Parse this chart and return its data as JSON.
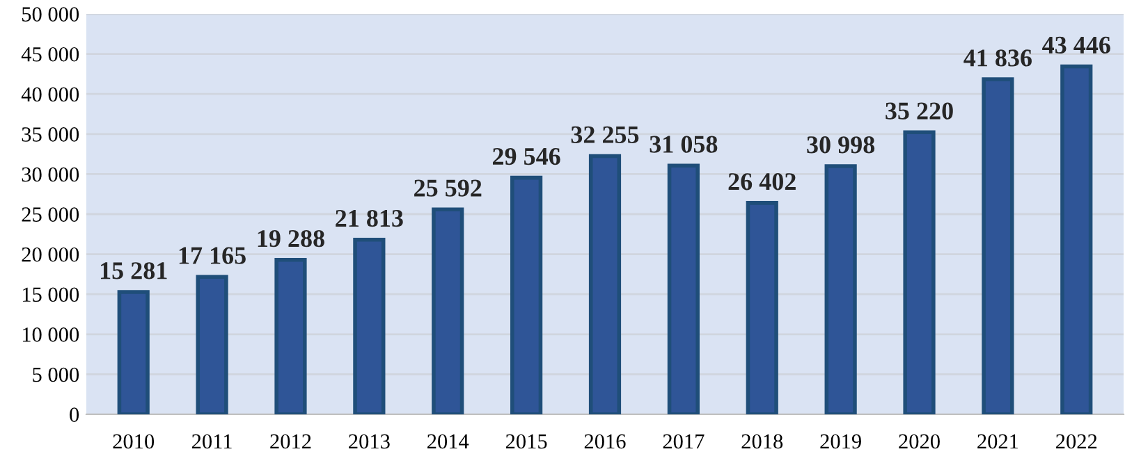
{
  "chart_data": {
    "type": "bar",
    "categories": [
      "2010",
      "2011",
      "2012",
      "2013",
      "2014",
      "2015",
      "2016",
      "2017",
      "2018",
      "2019",
      "2020",
      "2021",
      "2022"
    ],
    "values": [
      15281,
      17165,
      19288,
      21813,
      25592,
      29546,
      32255,
      31058,
      26402,
      30998,
      35220,
      41836,
      43446
    ],
    "value_labels": [
      "15 281",
      "17 165",
      "19 288",
      "21 813",
      "25 592",
      "29 546",
      "32 255",
      "31 058",
      "26 402",
      "30 998",
      "35 220",
      "41 836",
      "43 446"
    ],
    "color": "#2f5597",
    "ylim": [
      0,
      50000
    ],
    "yticks": [
      0,
      {
        "value": 5000,
        "label": "5 000"
      },
      {
        "value": 10000,
        "label": "10 000"
      },
      {
        "value": 15000,
        "label": "15 000"
      },
      {
        "value": 20000,
        "label": "20 000"
      },
      {
        "value": 25000,
        "label": "25 000"
      },
      {
        "value": 30000,
        "label": "30 000"
      },
      {
        "value": 35000,
        "label": "35 000"
      },
      {
        "value": 40000,
        "label": "40 000"
      },
      {
        "value": 45000,
        "label": "45 000"
      },
      {
        "value": 50000,
        "label": "50 000"
      }
    ],
    "grid": "y"
  }
}
